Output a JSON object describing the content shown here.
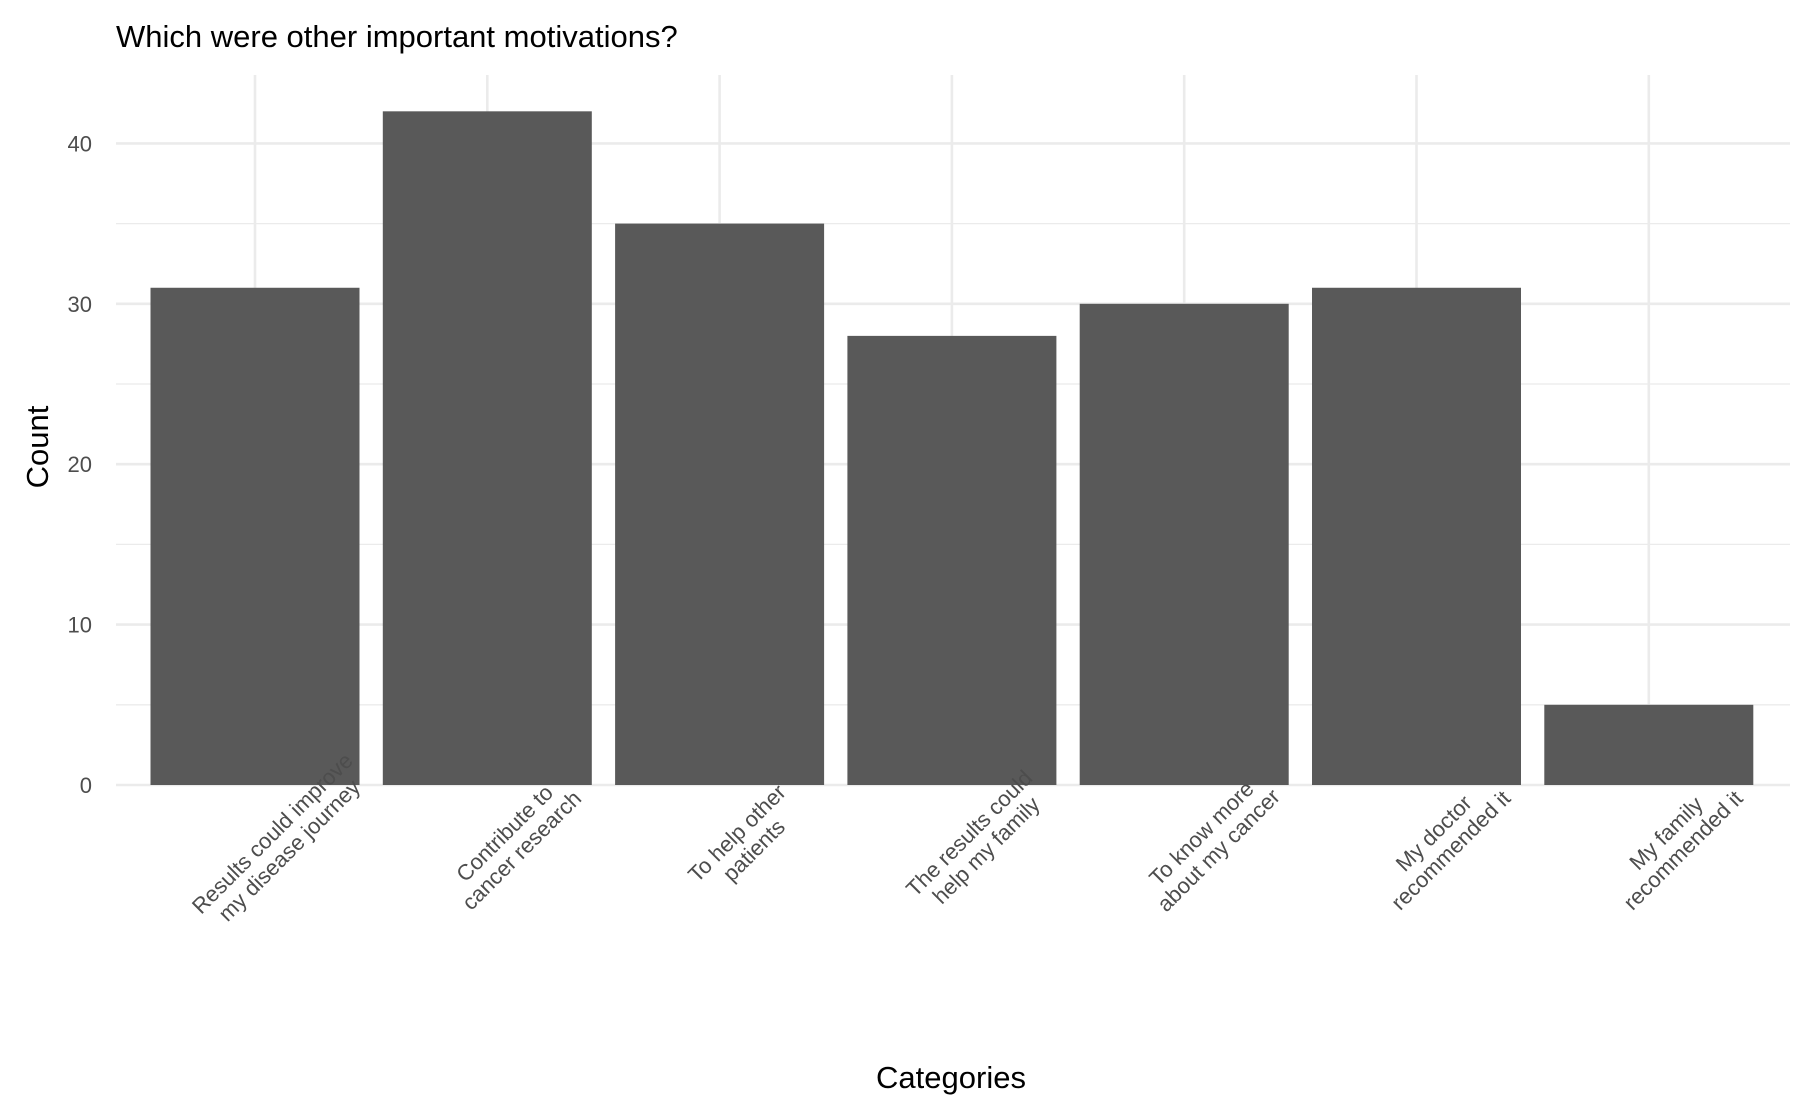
{
  "chart_data": {
    "type": "bar",
    "title": "Which were other important motivations?",
    "xlabel": "Categories",
    "ylabel": "Count",
    "categories": [
      [
        "Results could improve",
        "my disease journey"
      ],
      [
        "Contribute to",
        "cancer research"
      ],
      [
        "To help other",
        "patients"
      ],
      [
        "The results could",
        "help my family"
      ],
      [
        "To know more",
        "about my cancer"
      ],
      [
        "My doctor",
        "recommended it"
      ],
      [
        "My family",
        "recommended it"
      ]
    ],
    "values": [
      31,
      42,
      35,
      28,
      30,
      31,
      5
    ],
    "ylim": [
      0,
      44
    ],
    "yticks": [
      0,
      10,
      20,
      30,
      40
    ],
    "bar_color": "#595959",
    "grid": true,
    "legend": "none"
  }
}
